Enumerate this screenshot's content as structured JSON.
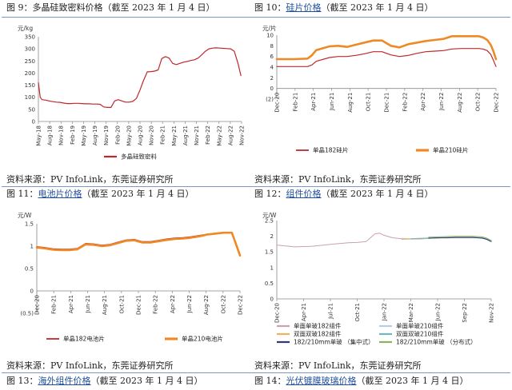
{
  "captions": {
    "fig9": {
      "prefix": "图 9：",
      "link": "",
      "text": "多晶硅致密料价格（截至 2023 年 1 月 4 日）"
    },
    "fig10": {
      "prefix": "图 10：",
      "link": "硅片价格",
      "text": "（截至 2023 年 1 月 4 日）"
    },
    "fig11": {
      "prefix": "图 11：",
      "link": "电池片价格",
      "text": "（截至 2023 年 1 月 4 日）"
    },
    "fig12": {
      "prefix": "图 12：",
      "link": "组件价格",
      "text": "（截至 2023 年 1 月 4 日）"
    },
    "fig13": {
      "prefix": "图 13：",
      "link": "海外组件价格",
      "text": "（截至 2023 年 1 月 4 日）"
    },
    "fig14": {
      "prefix": "图 14：",
      "link": "光伏镀膜玻璃价格",
      "text": "（截至 2023 年 1 月 4 日）"
    }
  },
  "sources": {
    "left_top": "资料来源：PV InfoLink，东莞证券研究所",
    "right_top": "资料来源：PV InfoLink，东莞证券研究所",
    "left_bottom": "资料来源：PV InfoLink，东莞证券研究所",
    "right_bottom": "资料来源：PV InfoLink，东莞证券研究所"
  },
  "chart_data": [
    {
      "id": "polysilicon",
      "type": "line",
      "ylabel": "元/kg",
      "ylim": [
        0,
        350
      ],
      "yticks": [
        "0",
        "50",
        "100",
        "150",
        "200",
        "250",
        "300",
        "350"
      ],
      "xticks": [
        "May-18",
        "Aug-18",
        "Nov-18",
        "Feb-19",
        "May-19",
        "Aug-19",
        "Nov-19",
        "Feb-20",
        "May-20",
        "Aug-20",
        "Nov-20",
        "Feb-21",
        "May-21",
        "Aug-21",
        "Nov-21",
        "Feb-22",
        "May-22",
        "Aug-22",
        "Nov-22"
      ],
      "x_range": [
        0,
        56
      ],
      "legend_position": "bottom",
      "series": [
        {
          "name": "多晶硅致密料",
          "color": "#c0272d",
          "x": [
            0,
            0.5,
            1,
            2,
            3,
            4,
            5,
            6,
            7,
            8,
            9,
            10,
            11,
            12,
            13,
            14,
            15,
            16,
            17,
            18,
            19,
            20,
            21,
            22,
            23,
            24,
            25,
            26,
            27,
            28,
            29,
            30,
            31,
            32,
            33,
            34,
            35,
            36,
            37,
            38,
            39,
            40,
            41,
            42,
            43,
            44,
            45,
            46,
            47,
            48,
            49,
            50,
            51,
            52,
            53,
            54,
            55,
            55.8
          ],
          "y": [
            160,
            100,
            90,
            88,
            85,
            82,
            80,
            79,
            76,
            74,
            74,
            75,
            75,
            74,
            73,
            73,
            72,
            72,
            71,
            60,
            58,
            58,
            85,
            90,
            85,
            80,
            80,
            83,
            95,
            130,
            170,
            205,
            206,
            208,
            213,
            260,
            268,
            262,
            240,
            235,
            240,
            245,
            248,
            252,
            255,
            262,
            275,
            290,
            300,
            303,
            304,
            303,
            302,
            301,
            300,
            290,
            240,
            190
          ]
        }
      ]
    },
    {
      "id": "wafer",
      "type": "line",
      "ylabel": "元/片",
      "ylim": [
        -2,
        10
      ],
      "yticks": [
        "(2)",
        "0",
        "2",
        "4",
        "6",
        "8",
        "10"
      ],
      "xticks": [
        "Dec-20",
        "Feb-21",
        "Apr-21",
        "Jun-21",
        "Aug-21",
        "Oct-21",
        "Dec-21",
        "Feb-22",
        "Apr-22",
        "Jun-22",
        "Aug-22",
        "Oct-22",
        "Dec-22"
      ],
      "x_range": [
        0,
        25
      ],
      "legend_position": "bottom",
      "series": [
        {
          "name": "单晶182硅片",
          "color": "#c0272d",
          "x": [
            0,
            2,
            3.5,
            4,
            4.5,
            6,
            7,
            8,
            9,
            10,
            11,
            12,
            13,
            14,
            15,
            16,
            17,
            18,
            19,
            20,
            21,
            22,
            22.5,
            23,
            23.5,
            24,
            24.4,
            24.7,
            25
          ],
          "y": [
            4.1,
            4.1,
            4.1,
            4.4,
            5.1,
            5.8,
            6.0,
            6.0,
            6.2,
            6.5,
            6.9,
            6.9,
            6.3,
            6.0,
            6.2,
            6.6,
            6.9,
            7.0,
            7.1,
            7.4,
            7.5,
            7.5,
            7.5,
            7.5,
            7.4,
            7.1,
            6.4,
            5.3,
            4.1
          ]
        },
        {
          "name": "单晶210硅片",
          "color": "#ee8a25",
          "x": [
            0,
            2,
            3.5,
            4,
            4.5,
            6,
            7,
            8,
            9,
            10,
            11,
            12,
            13,
            14,
            15,
            16,
            17,
            18,
            19,
            20,
            21,
            22,
            22.5,
            23,
            23.5,
            24,
            24.4,
            24.7,
            25
          ],
          "y": [
            5.5,
            5.5,
            5.6,
            6.2,
            7.2,
            7.9,
            8.0,
            7.8,
            8.2,
            8.6,
            9.0,
            9.0,
            8.0,
            7.7,
            8.3,
            8.6,
            8.9,
            9.1,
            9.3,
            9.8,
            9.8,
            9.8,
            9.8,
            9.8,
            9.6,
            9.1,
            8.2,
            7.0,
            5.5
          ]
        }
      ]
    },
    {
      "id": "cell",
      "type": "line",
      "ylabel": "元/W",
      "ylim": [
        -0.5,
        1.5
      ],
      "yticks": [
        "(0.5)",
        "0",
        "0.5",
        "1",
        "1.5"
      ],
      "xticks": [
        "Dec-20",
        "Feb-21",
        "Apr-21",
        "Jun-21",
        "Aug-21",
        "Oct-21",
        "Dec-21",
        "Feb-22",
        "Apr-22",
        "Jun-22",
        "Aug-22",
        "Oct-22",
        "Dec-22"
      ],
      "x_range": [
        0,
        25
      ],
      "legend_position": "bottom",
      "series": [
        {
          "name": "单晶182电池片",
          "color": "#c0272d",
          "x": [
            0,
            1,
            2,
            3,
            4,
            5,
            6,
            7,
            8,
            9,
            10,
            11,
            12,
            13,
            14,
            15,
            16,
            17,
            18,
            19,
            20,
            21,
            22,
            23,
            24,
            24.5,
            25
          ],
          "y": [
            0.99,
            0.97,
            0.94,
            0.93,
            0.93,
            0.95,
            1.06,
            1.05,
            1.02,
            1.04,
            1.09,
            1.14,
            1.15,
            1.1,
            1.1,
            1.13,
            1.16,
            1.18,
            1.19,
            1.21,
            1.24,
            1.27,
            1.29,
            1.31,
            1.31,
            1.08,
            0.81
          ]
        },
        {
          "name": "单晶210电池片",
          "color": "#ee8a25",
          "x": [
            0,
            1,
            2,
            3,
            4,
            5,
            6,
            7,
            8,
            9,
            10,
            11,
            12,
            13,
            14,
            15,
            16,
            17,
            18,
            19,
            20,
            21,
            22,
            23,
            24,
            24.5,
            25
          ],
          "y": [
            0.97,
            0.95,
            0.92,
            0.91,
            0.91,
            0.93,
            1.04,
            1.03,
            1.0,
            1.02,
            1.07,
            1.12,
            1.13,
            1.08,
            1.08,
            1.11,
            1.14,
            1.16,
            1.17,
            1.19,
            1.22,
            1.26,
            1.28,
            1.3,
            1.3,
            1.05,
            0.79
          ]
        }
      ]
    },
    {
      "id": "module",
      "type": "line",
      "ylabel": "元/W",
      "ylim": [
        0,
        2.5
      ],
      "yticks": [
        "0",
        "0.5",
        "1",
        "1.5",
        "2",
        "2.5"
      ],
      "xticks": [
        "Dec-20",
        "Apr-21",
        "Jul-21",
        "Oct-21",
        "Jan-22",
        "Mar-22",
        "Jun-22",
        "Sep-22",
        "Nov-22"
      ],
      "x_range": [
        0,
        24
      ],
      "legend_position": "bottom",
      "legend_columns": 2,
      "series": [
        {
          "name": "单面单玻182组件",
          "color": "#c8a0b8",
          "x": [
            0,
            2,
            4,
            6,
            8,
            9,
            10,
            11,
            11.5,
            12,
            13,
            14,
            15,
            16,
            17,
            18,
            19,
            20,
            21,
            22,
            23,
            23.5,
            24
          ],
          "y": [
            1.72,
            1.66,
            1.68,
            1.74,
            1.79,
            1.8,
            1.83,
            2.08,
            2.1,
            2.03,
            1.95,
            1.92,
            1.91,
            1.91,
            1.93,
            1.95,
            1.96,
            1.96,
            1.96,
            1.96,
            1.95,
            1.92,
            1.86
          ]
        },
        {
          "name": "单面单玻210组件",
          "color": "#b7cbe6",
          "x": [
            14,
            15,
            16,
            17,
            18,
            19,
            20,
            21,
            22,
            23,
            23.5,
            24
          ],
          "y": [
            1.93,
            1.92,
            1.93,
            1.95,
            1.97,
            1.98,
            1.98,
            1.98,
            1.98,
            1.97,
            1.93,
            1.87
          ]
        },
        {
          "name": "双面双玻182组件",
          "color": "#f0b25a",
          "x": [
            14,
            15,
            16,
            17,
            18,
            19,
            20,
            21,
            22,
            23,
            23.5,
            24
          ],
          "y": [
            1.9,
            1.91,
            1.92,
            1.93,
            1.95,
            1.96,
            1.97,
            1.97,
            1.97,
            1.95,
            1.92,
            1.85
          ]
        },
        {
          "name": "双面双玻210组件",
          "color": "#6fb7c6",
          "x": [
            15,
            16,
            17,
            18,
            19,
            20,
            21,
            22,
            23,
            23.5,
            24
          ],
          "y": [
            1.92,
            1.93,
            1.94,
            1.95,
            1.96,
            1.96,
            1.96,
            1.96,
            1.95,
            1.91,
            1.84
          ]
        },
        {
          "name": "182/210mm单玻 （集中式）",
          "color": "#2e3a7a",
          "x": [
            17,
            18,
            19,
            20,
            21,
            22,
            23,
            23.5,
            24
          ],
          "y": [
            1.94,
            1.95,
            1.95,
            1.96,
            1.96,
            1.96,
            1.94,
            1.9,
            1.83
          ]
        },
        {
          "name": "182/210mm单玻 （分布式）",
          "color": "#8bb55a",
          "x": [
            17,
            18,
            19,
            20,
            21,
            22,
            23,
            23.5,
            24
          ],
          "y": [
            1.97,
            1.98,
            1.99,
            2.0,
            2.0,
            2.0,
            1.98,
            1.94,
            1.86
          ]
        }
      ]
    }
  ]
}
